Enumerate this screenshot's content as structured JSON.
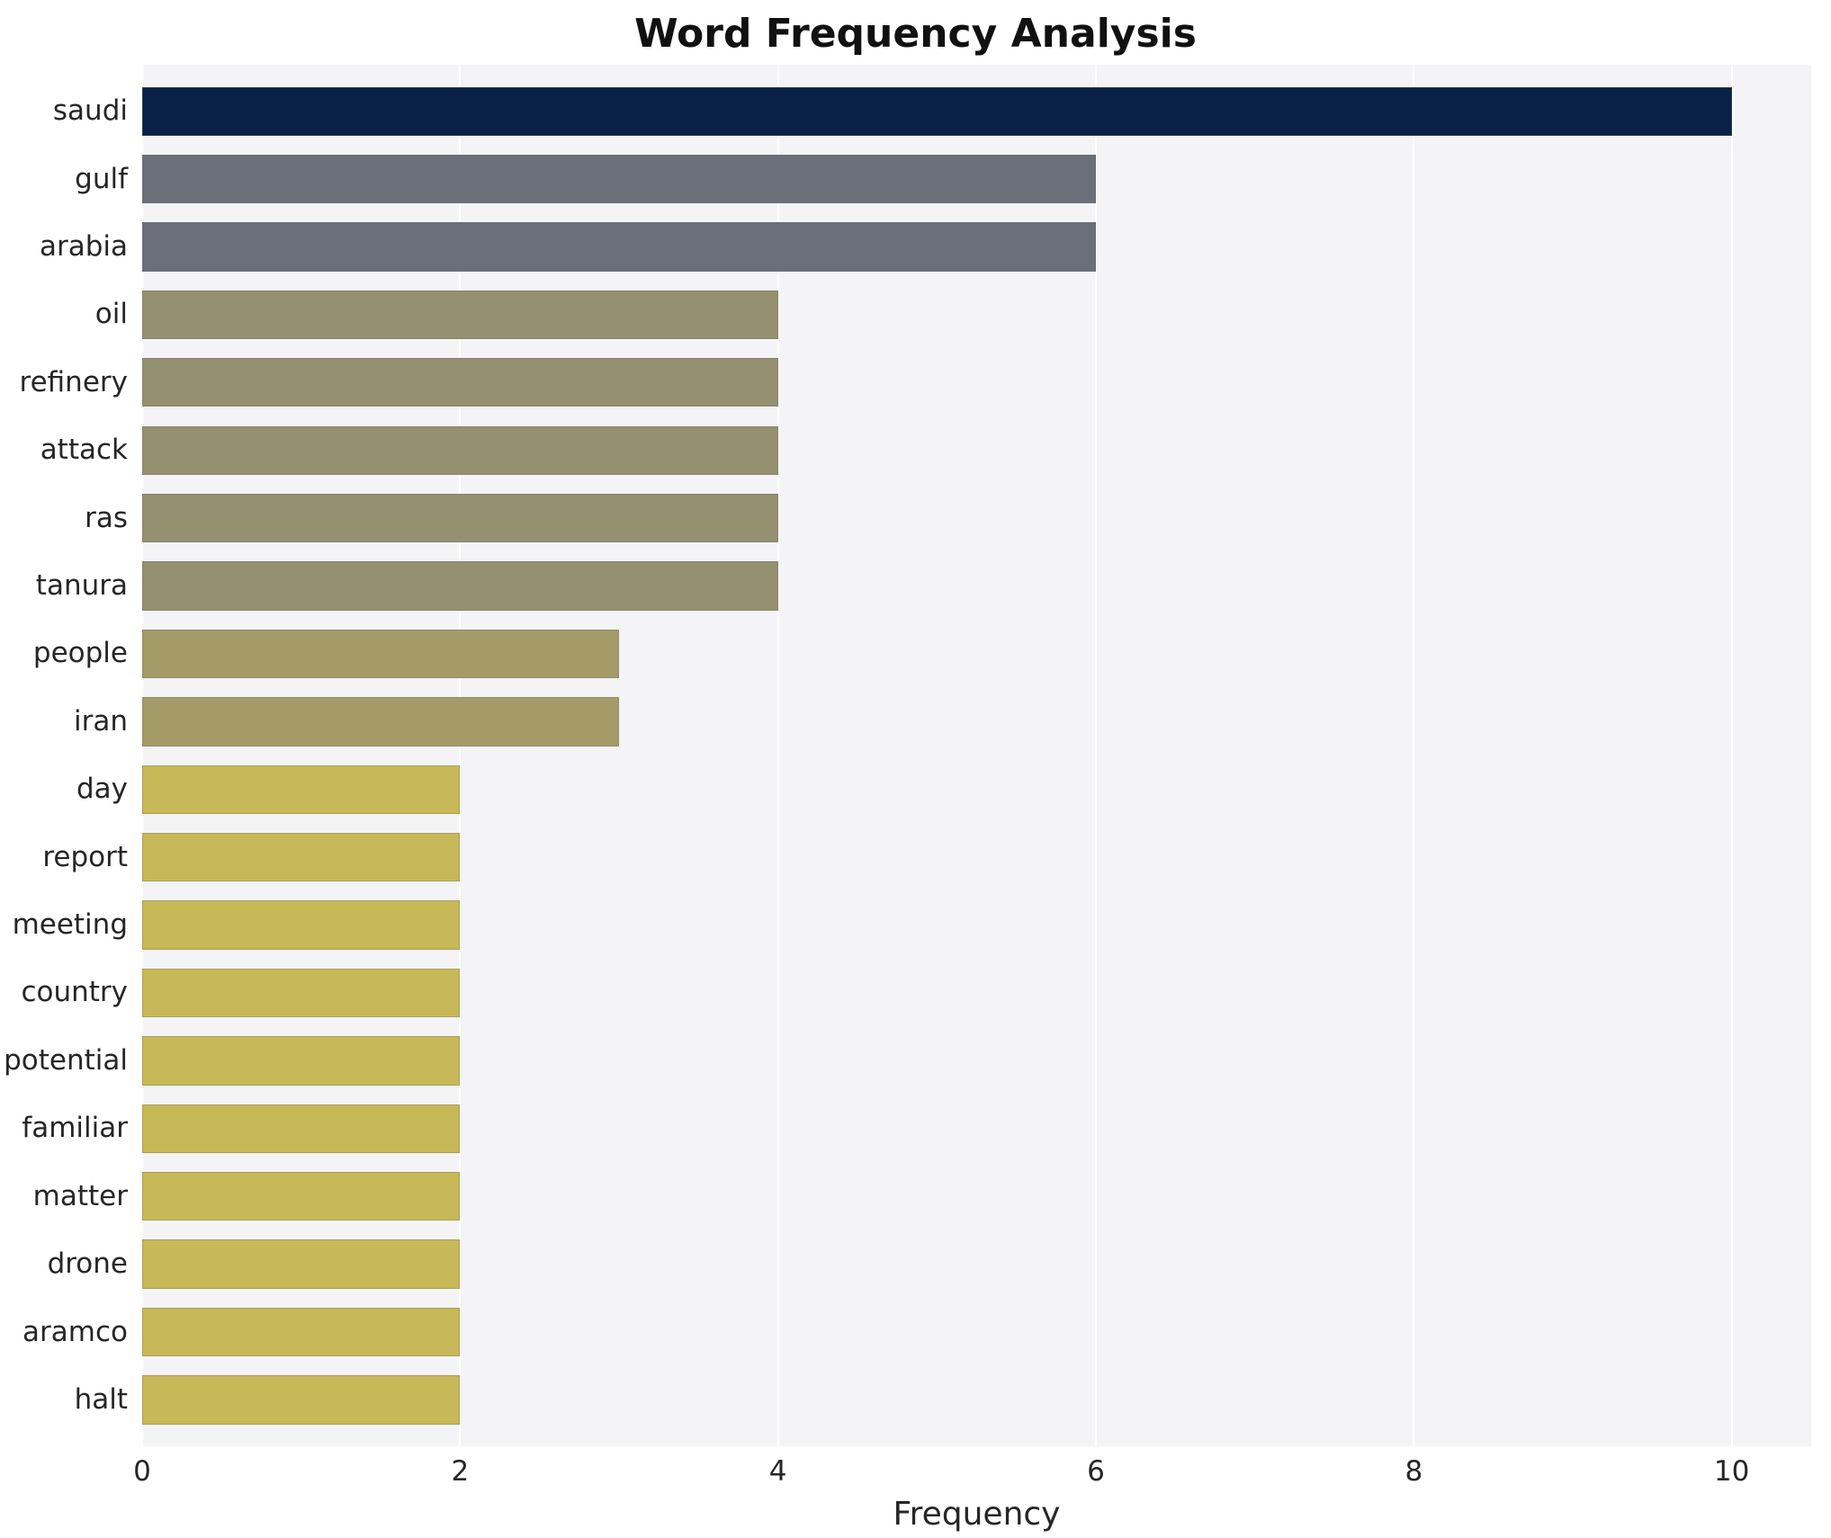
{
  "title": "Word Frequency Analysis",
  "xlabel": "Frequency",
  "chart_data": {
    "type": "bar",
    "orientation": "horizontal",
    "title": "Word Frequency Analysis",
    "xlabel": "Frequency",
    "ylabel": "",
    "xlim": [
      0,
      10.5
    ],
    "xticks": [
      0,
      2,
      4,
      6,
      8,
      10
    ],
    "grid": "vertical-white-lines",
    "legend": false,
    "plot_bg": "#f4f4f6",
    "grid_color": "#ffffff",
    "categories": [
      "saudi",
      "gulf",
      "arabia",
      "oil",
      "refinery",
      "attack",
      "ras",
      "tanura",
      "people",
      "iran",
      "day",
      "report",
      "meeting",
      "country",
      "potential",
      "familiar",
      "matter",
      "drone",
      "aramco",
      "halt"
    ],
    "values": [
      10,
      6,
      6,
      4,
      4,
      4,
      4,
      4,
      3,
      3,
      2,
      2,
      2,
      2,
      2,
      2,
      2,
      2,
      2,
      2
    ],
    "bar_colors": [
      "#0a2147",
      "#6b6f7a",
      "#6b6f7a",
      "#949070",
      "#949070",
      "#949070",
      "#949070",
      "#949070",
      "#a49b68",
      "#a49b68",
      "#c7b957",
      "#c7b957",
      "#c7b957",
      "#c7b957",
      "#c7b957",
      "#c7b957",
      "#c7b957",
      "#c7b957",
      "#c7b957",
      "#c7b957"
    ]
  }
}
